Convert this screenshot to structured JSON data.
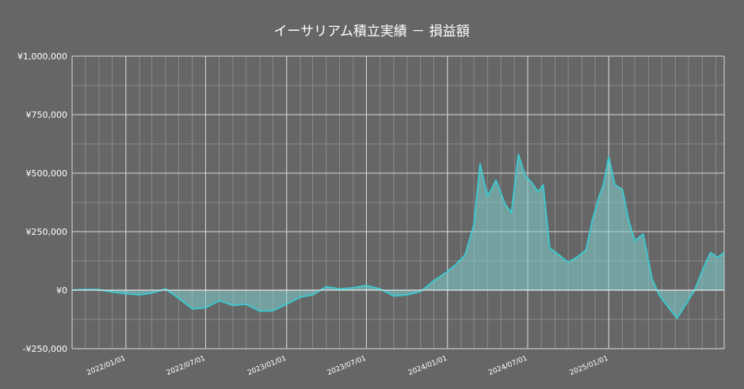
{
  "chart_data": {
    "type": "area",
    "title": "イーサリアム積立実績 － 損益額",
    "xlabel": "",
    "ylabel": "",
    "ylim": [
      -250000,
      1000000
    ],
    "xlim": [
      "2021-09-01",
      "2025-09-20"
    ],
    "grid": true,
    "colors": {
      "background": "#666666",
      "line": "#3ec6cc",
      "fill": "#7fcfcf",
      "grid_major": "#d8d8d8",
      "grid_minor": "#8a8a8a"
    },
    "y_ticks": [
      {
        "value": 1000000,
        "label": "¥1,000,000"
      },
      {
        "value": 750000,
        "label": "¥750,000"
      },
      {
        "value": 500000,
        "label": "¥500,000"
      },
      {
        "value": 250000,
        "label": "¥250,000"
      },
      {
        "value": 0,
        "label": "¥0"
      },
      {
        "value": -250000,
        "label": "-¥250,000"
      }
    ],
    "x_ticks": [
      {
        "value": "2022-01-01",
        "label": "2022/01/01"
      },
      {
        "value": "2022-07-01",
        "label": "2022/07/01"
      },
      {
        "value": "2023-01-01",
        "label": "2023/01/01"
      },
      {
        "value": "2023-07-01",
        "label": "2023/07/01"
      },
      {
        "value": "2024-01-01",
        "label": "2024/01/01"
      },
      {
        "value": "2024-07-01",
        "label": "2024/07/01"
      },
      {
        "value": "2025-01-01",
        "label": "2025/01/01"
      }
    ],
    "x": [
      "2021-09-01",
      "2021-10-01",
      "2021-11-01",
      "2021-12-01",
      "2022-01-01",
      "2022-02-01",
      "2022-03-01",
      "2022-04-01",
      "2022-05-01",
      "2022-06-01",
      "2022-07-01",
      "2022-08-01",
      "2022-09-01",
      "2022-10-01",
      "2022-11-01",
      "2022-12-01",
      "2023-01-01",
      "2023-02-01",
      "2023-03-01",
      "2023-04-01",
      "2023-05-01",
      "2023-06-01",
      "2023-07-01",
      "2023-08-01",
      "2023-09-01",
      "2023-10-01",
      "2023-11-01",
      "2023-12-01",
      "2024-01-01",
      "2024-01-20",
      "2024-02-10",
      "2024-03-01",
      "2024-03-15",
      "2024-04-01",
      "2024-04-20",
      "2024-05-10",
      "2024-05-25",
      "2024-06-10",
      "2024-06-25",
      "2024-07-10",
      "2024-07-25",
      "2024-08-05",
      "2024-08-20",
      "2024-09-10",
      "2024-10-01",
      "2024-10-20",
      "2024-11-10",
      "2024-11-25",
      "2024-12-10",
      "2024-12-20",
      "2025-01-01",
      "2025-01-15",
      "2025-02-01",
      "2025-02-15",
      "2025-03-01",
      "2025-03-20",
      "2025-04-09",
      "2025-04-25",
      "2025-05-15",
      "2025-06-05",
      "2025-06-25",
      "2025-07-15",
      "2025-08-05",
      "2025-08-20",
      "2025-09-05",
      "2025-09-20"
    ],
    "series": [
      {
        "values": [
          0,
          3000,
          2000,
          -8000,
          -15000,
          -20000,
          -12000,
          5000,
          -35000,
          -80000,
          -75000,
          -45000,
          -65000,
          -60000,
          -90000,
          -88000,
          -60000,
          -30000,
          -20000,
          15000,
          5000,
          10000,
          20000,
          5000,
          -25000,
          -20000,
          -5000,
          40000,
          80000,
          110000,
          150000,
          280000,
          540000,
          400000,
          470000,
          370000,
          330000,
          580000,
          490000,
          460000,
          420000,
          450000,
          180000,
          150000,
          120000,
          140000,
          170000,
          300000,
          400000,
          450000,
          570000,
          450000,
          430000,
          300000,
          210000,
          240000,
          50000,
          -20000,
          -70000,
          -120000,
          -60000,
          0,
          100000,
          160000,
          140000,
          160000
        ]
      }
    ]
  }
}
